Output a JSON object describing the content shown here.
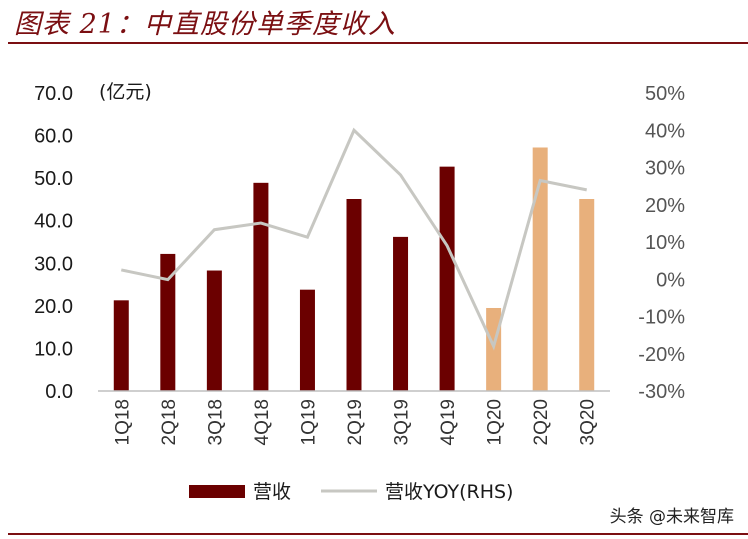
{
  "header": {
    "title": "图表 21：中直股份单季度收入"
  },
  "watermark": "头条 @未来智库",
  "chart_data": {
    "type": "bar",
    "unit_label": "(亿元)",
    "categories": [
      "1Q18",
      "2Q18",
      "3Q18",
      "4Q18",
      "1Q19",
      "2Q19",
      "3Q19",
      "4Q19",
      "1Q20",
      "2Q20",
      "3Q20"
    ],
    "series": [
      {
        "name": "营收",
        "type": "bar",
        "axis": "left",
        "values": [
          21.3,
          32.2,
          28.3,
          48.9,
          23.8,
          45.1,
          36.2,
          52.7,
          19.5,
          57.2,
          45.1
        ]
      },
      {
        "name": "营收YOY(RHS)",
        "type": "line",
        "axis": "right",
        "values": [
          2.5,
          -0.1,
          13.3,
          15.1,
          11.3,
          40.0,
          28.0,
          9.0,
          -18.0,
          26.5,
          24.0
        ]
      }
    ],
    "y_left": {
      "min": 0,
      "max": 70,
      "ticks": [
        "0.0",
        "10.0",
        "20.0",
        "30.0",
        "40.0",
        "50.0",
        "60.0",
        "70.0"
      ]
    },
    "y_right": {
      "min": -30,
      "max": 50,
      "ticks": [
        "-30%",
        "-20%",
        "-10%",
        "0%",
        "10%",
        "20%",
        "30%",
        "40%",
        "50%"
      ]
    },
    "grid": false,
    "legend_position": "bottom",
    "colors": {
      "actual": "#6b0000",
      "forecast": "#e8b07c",
      "line": "#c7c7c2",
      "axis": "#bfbfbf"
    },
    "highlight_from_index": 8
  }
}
